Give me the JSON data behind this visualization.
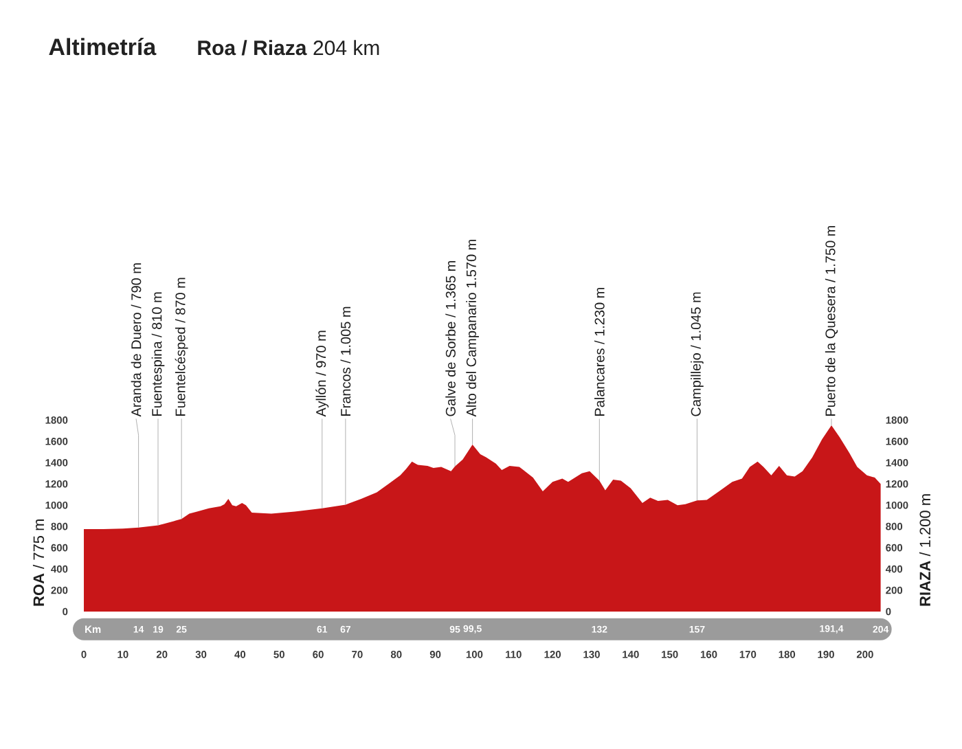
{
  "chart_data": {
    "type": "area",
    "title": "Altimetría",
    "subtitle": "**Roa / Riaza** 204 km",
    "ylabel": "**ROA** / 775 m",
    "y2label": "**RIAZA** / 1.200 m",
    "x2label": "Km",
    "x": [
      0,
      5,
      10,
      14,
      19,
      23,
      25,
      27,
      29,
      32,
      35,
      36,
      37,
      38,
      39,
      40.5,
      41.5,
      43,
      48,
      54,
      61,
      67,
      71,
      75,
      78,
      81,
      82.5,
      84,
      85.5,
      88,
      89.5,
      91.5,
      94,
      95,
      97,
      99.5,
      101.5,
      103,
      105.5,
      107,
      109,
      111.5,
      115,
      117.5,
      120,
      122.5,
      124,
      127.5,
      129.5,
      132,
      133.5,
      135.5,
      137.5,
      140,
      143,
      145,
      147,
      149.5,
      152,
      154,
      157,
      159.5,
      163,
      166,
      168.5,
      170.5,
      172.5,
      174,
      176,
      178,
      180,
      182,
      184,
      186.5,
      189,
      191.4,
      193.5,
      196,
      198,
      200.5,
      202.5,
      204
    ],
    "values": [
      775,
      775,
      780,
      790,
      810,
      850,
      870,
      920,
      940,
      970,
      990,
      1010,
      1060,
      1000,
      990,
      1020,
      1000,
      930,
      920,
      940,
      970,
      1005,
      1060,
      1120,
      1200,
      1280,
      1340,
      1410,
      1380,
      1370,
      1350,
      1360,
      1320,
      1365,
      1430,
      1570,
      1480,
      1450,
      1390,
      1330,
      1370,
      1360,
      1260,
      1130,
      1220,
      1250,
      1220,
      1300,
      1320,
      1230,
      1140,
      1240,
      1230,
      1160,
      1020,
      1070,
      1040,
      1050,
      1000,
      1010,
      1045,
      1050,
      1140,
      1220,
      1250,
      1360,
      1410,
      1360,
      1280,
      1370,
      1280,
      1270,
      1320,
      1450,
      1620,
      1750,
      1640,
      1490,
      1360,
      1280,
      1260,
      1200
    ],
    "color": "#c81618",
    "xlim": [
      0,
      204
    ],
    "xticks": [
      0,
      10,
      20,
      30,
      40,
      50,
      60,
      70,
      80,
      90,
      100,
      110,
      120,
      130,
      140,
      150,
      160,
      170,
      180,
      190,
      200
    ],
    "x2lim": [
      0,
      204
    ],
    "x2ticks": [
      14,
      19,
      25,
      61,
      67,
      95,
      {
        "value": 99.5,
        "label": "99,5"
      },
      132,
      157,
      {
        "value": 191.4,
        "label": "191,4"
      },
      204
    ],
    "ylim": [
      0,
      1800
    ],
    "yticks": [
      0,
      200,
      400,
      600,
      800,
      1000,
      1200,
      1400,
      1600,
      1800
    ],
    "y2lim": [
      0,
      1800
    ],
    "y2ticks": [
      0,
      200,
      400,
      600,
      800,
      1000,
      1200,
      1400,
      1600,
      1800
    ],
    "annotations": [
      {
        "text": "Aranda de Duero / 790 m",
        "x": 14,
        "y": 790
      },
      {
        "text": "Fuentespina / 810 m",
        "x": 19,
        "y": 810
      },
      {
        "text": "Fuentelcésped / 870 m",
        "x": 25,
        "y": 870
      },
      {
        "text": "Ayllón / 970 m",
        "x": 61,
        "y": 970
      },
      {
        "text": "Francos / 1.005 m",
        "x": 67,
        "y": 1005
      },
      {
        "text": "Galve de Sorbe / 1.365 m",
        "x": 95,
        "y": 1365
      },
      {
        "text": "Alto del Campanario 1.570 m",
        "x": 99.5,
        "y": 1570
      },
      {
        "text": "Palancares / 1.230 m",
        "x": 132,
        "y": 1230
      },
      {
        "text": "Campillejo / 1.045 m",
        "x": 157,
        "y": 1045
      },
      {
        "text": "Puerto de la Quesera / 1.750 m",
        "x": 191.4,
        "y": 1750
      }
    ]
  }
}
